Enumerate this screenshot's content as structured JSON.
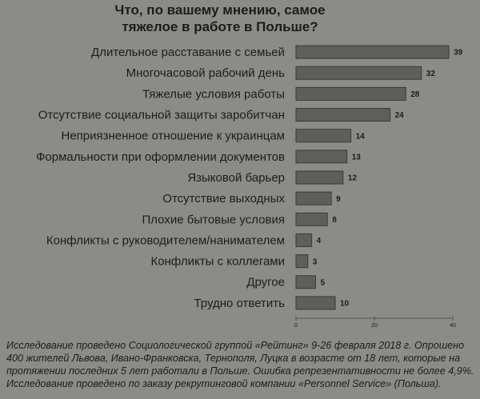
{
  "chart_data": {
    "type": "bar",
    "orientation": "horizontal",
    "title": "Что, по вашему мнению, самое тяжелое в работе в Польше?",
    "categories": [
      "Длительное расставание с семьей",
      "Многочасовой рабочий день",
      "Тяжелые условия работы",
      "Отсутствие социальной защиты заробитчан",
      "Неприязненное отношение к украинцам",
      "Формальности при оформлении документов",
      "Языковой барьер",
      "Отсутствие выходных",
      "Плохие бытовые условия",
      "Конфликты с руководителем/нанимателем",
      "Конфликты с коллегами",
      "Другое",
      "Трудно ответить"
    ],
    "values": [
      39,
      32,
      28,
      24,
      14,
      13,
      12,
      9,
      8,
      4,
      3,
      5,
      10
    ],
    "color": "#5e5e5c",
    "xlim": [
      0,
      40
    ],
    "xticks": [
      0,
      20,
      40
    ],
    "grid": false,
    "note": "Исследование проведено Социологической группой «Рейтинг» 9-26 февраля 2018 г. Опрошено 400 жителей Львова, Ивано-Франковска, Тернополя, Луцка в возрасте от 18 лет, которые на протяжении последних 5 лет работали в Польше. Ошибка репрезентативности не более 4,9%. Исследование проведено по заказу рекрутинговой компании «Personnel Service» (Польша)."
  }
}
